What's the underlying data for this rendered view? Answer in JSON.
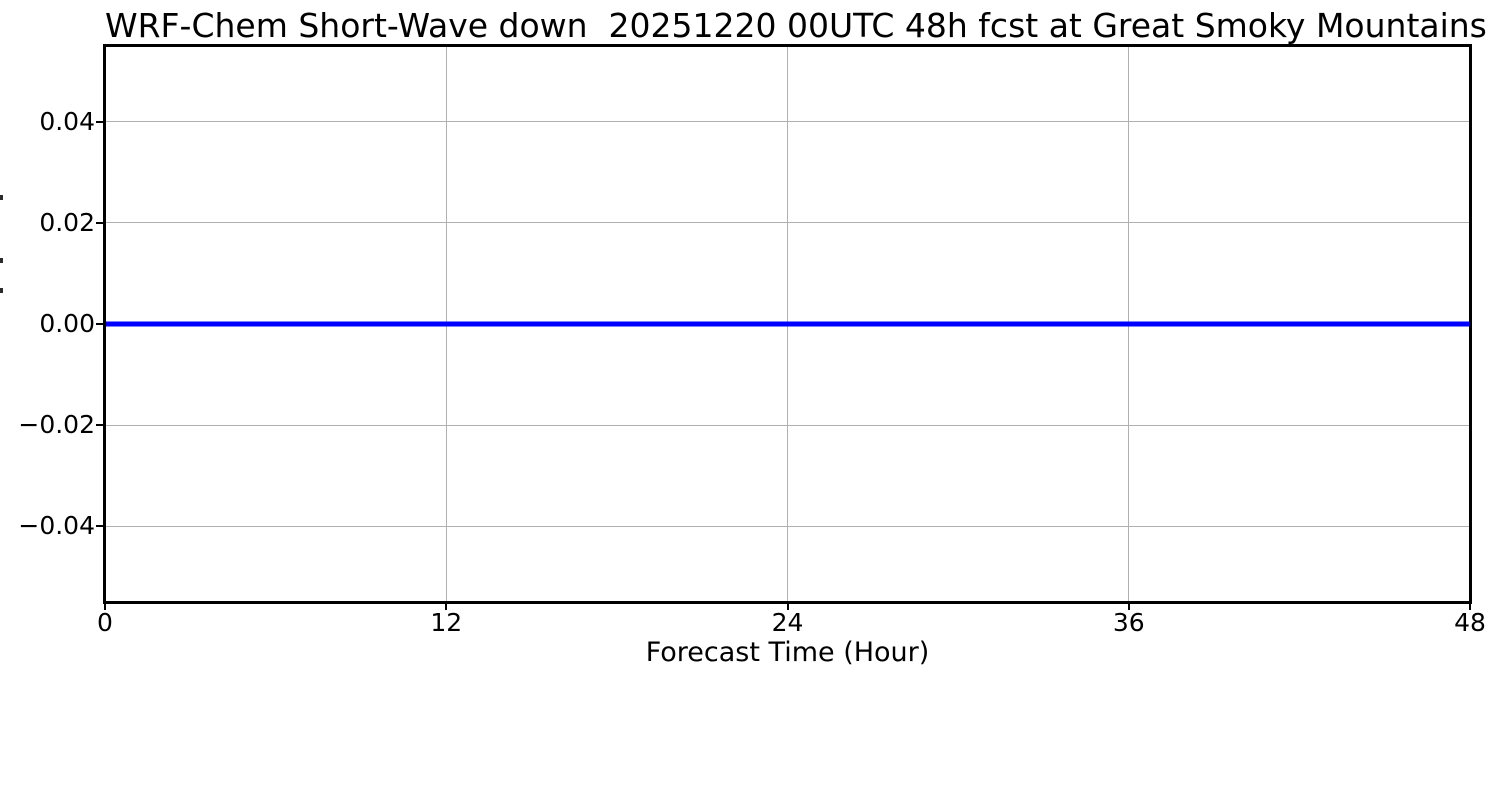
{
  "chart_data": {
    "type": "line",
    "title": "WRF-Chem Short-Wave down  20251220 00UTC 48h fcst at Great Smoky Mountains",
    "xlabel": "Forecast Time (Hour)",
    "ylabel": "",
    "xlim": [
      0,
      48
    ],
    "ylim": [
      -0.055,
      0.055
    ],
    "xticks": [
      0,
      12,
      24,
      36,
      48
    ],
    "xtick_labels": [
      "0",
      "12",
      "24",
      "36",
      "48"
    ],
    "yticks": [
      0.04,
      0.02,
      0,
      -0.02,
      -0.04
    ],
    "ytick_labels": [
      "0.04",
      "0.02",
      "0.00",
      "−0.02",
      "−0.04"
    ],
    "grid": true,
    "grid_color": "#b0b0b0",
    "frame_color": "#000000",
    "background_color": "#ffffff",
    "legend": null,
    "series": [
      {
        "name": "short-wave-down",
        "x": [
          0,
          48
        ],
        "y": [
          0,
          0
        ],
        "color": "#0000ff",
        "linewidth": 5
      }
    ]
  }
}
